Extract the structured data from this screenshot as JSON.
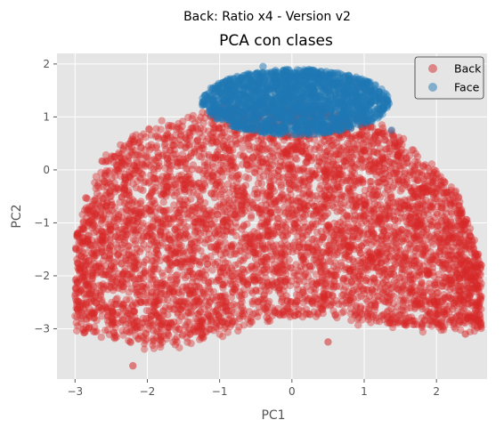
{
  "chart_data": {
    "type": "scatter",
    "suptitle": "Back: Ratio x4 - Version v2",
    "title": "PCA con clases",
    "xlabel": "PC1",
    "ylabel": "PC2",
    "xlim": [
      -3.25,
      2.7
    ],
    "ylim": [
      -3.95,
      2.2
    ],
    "xticks": [
      -3,
      -2,
      -1,
      0,
      1,
      2
    ],
    "yticks": [
      -3,
      -2,
      -1,
      0,
      1,
      2
    ],
    "grid": true,
    "legend": "top-right",
    "series": [
      {
        "name": "Back",
        "color": "#d62728",
        "region": {
          "x_range": [
            -3.0,
            2.65
          ],
          "y_range": [
            -3.7,
            1.25
          ]
        },
        "outliers": [
          [
            -2.85,
            -0.53
          ],
          [
            -2.2,
            -3.7
          ],
          [
            0.5,
            -3.25
          ],
          [
            2.4,
            -3.1
          ],
          [
            2.62,
            -1.8
          ],
          [
            0.05,
            1.05
          ]
        ]
      },
      {
        "name": "Face",
        "color": "#1f77b4",
        "region": {
          "x_range": [
            -1.3,
            1.4
          ],
          "y_range": [
            0.6,
            1.95
          ]
        },
        "outliers": [
          [
            -0.4,
            1.95
          ],
          [
            0.3,
            1.88
          ],
          [
            1.38,
            0.75
          ],
          [
            -1.1,
            1.3
          ],
          [
            0.9,
            1.55
          ]
        ]
      }
    ]
  }
}
